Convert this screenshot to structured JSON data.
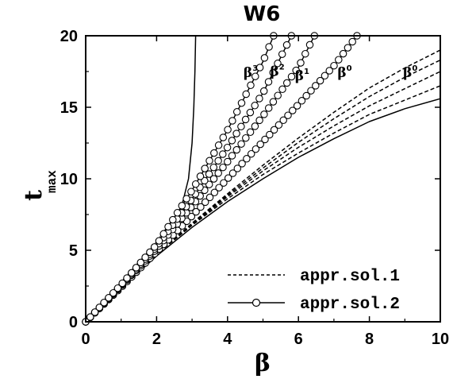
{
  "chart_data": {
    "type": "line",
    "title": "W6",
    "xlabel": "β",
    "ylabel_main": "t",
    "ylabel_sub": "max",
    "xlim": [
      0,
      10
    ],
    "ylim": [
      0,
      20
    ],
    "xticks": [
      0,
      2,
      4,
      6,
      8,
      10
    ],
    "yticks": [
      0,
      5,
      10,
      15,
      20
    ],
    "grid": false,
    "legend_position": "bottom-right",
    "legend": [
      {
        "label": "appr.sol.1",
        "style": "dashed"
      },
      {
        "label": "appr.sol.2",
        "style": "solid-circle"
      }
    ],
    "annotations": [
      {
        "base": "β",
        "sup": "3",
        "x": 4.45,
        "y": 17.1
      },
      {
        "base": "β",
        "sup": "2",
        "x": 5.2,
        "y": 17.2
      },
      {
        "base": "β",
        "sup": "1",
        "x": 5.9,
        "y": 16.9
      },
      {
        "base": "β",
        "sup": "0",
        "x": 7.1,
        "y": 17.1
      },
      {
        "base": "β",
        "sup": "0",
        "x": 8.95,
        "y": 17.1
      }
    ],
    "series": [
      {
        "style": "solid",
        "x": [
          0,
          0.5,
          1,
          1.5,
          2,
          2.4,
          2.7,
          2.9,
          3.0,
          3.05,
          3.08,
          3.1
        ],
        "y": [
          0,
          1.2,
          2.4,
          3.6,
          5.0,
          6.4,
          8.0,
          10.0,
          12.5,
          15.0,
          17.5,
          20.0
        ]
      },
      {
        "style": "solid",
        "x": [
          0,
          1,
          2,
          3,
          4,
          5,
          6,
          7,
          8,
          9,
          10
        ],
        "y": [
          0,
          2.35,
          4.6,
          6.6,
          8.4,
          10.0,
          11.5,
          12.8,
          14.0,
          14.9,
          15.6
        ]
      },
      {
        "style": "dashed",
        "x": [
          0,
          1,
          2,
          3,
          4,
          5,
          6,
          7,
          8,
          9,
          10
        ],
        "y": [
          0,
          2.4,
          4.7,
          6.75,
          8.6,
          10.3,
          11.8,
          13.2,
          14.5,
          15.5,
          16.5
        ]
      },
      {
        "style": "dashed",
        "x": [
          0,
          1,
          2,
          3,
          4,
          5,
          6,
          7,
          8,
          9,
          10
        ],
        "y": [
          0,
          2.4,
          4.7,
          6.8,
          8.75,
          10.55,
          12.2,
          13.7,
          15.1,
          16.3,
          17.5
        ]
      },
      {
        "style": "dashed",
        "x": [
          0,
          1,
          2,
          3,
          4,
          5,
          6,
          7,
          8,
          9,
          10
        ],
        "y": [
          0,
          2.4,
          4.7,
          6.85,
          8.85,
          10.75,
          12.55,
          14.2,
          15.75,
          17.1,
          18.3
        ]
      },
      {
        "style": "dashed",
        "x": [
          0,
          1,
          2,
          3,
          4,
          5,
          6,
          7,
          8,
          9,
          10
        ],
        "y": [
          0,
          2.4,
          4.7,
          6.9,
          8.95,
          10.95,
          12.85,
          14.65,
          16.35,
          17.75,
          19.0
        ]
      },
      {
        "style": "circle",
        "x": [
          0,
          1,
          2,
          3,
          4,
          5,
          6,
          7,
          7.65
        ],
        "y": [
          0,
          2.4,
          4.9,
          7.4,
          10.0,
          12.6,
          15.2,
          17.9,
          20.0
        ]
      },
      {
        "style": "circle",
        "x": [
          0,
          1,
          2,
          3,
          4,
          5,
          6,
          6.45
        ],
        "y": [
          0,
          2.5,
          5.1,
          8.1,
          11.2,
          14.4,
          17.8,
          20.0
        ]
      },
      {
        "style": "circle",
        "x": [
          0,
          1,
          2,
          3,
          4,
          5,
          5.8
        ],
        "y": [
          0,
          2.55,
          5.25,
          8.6,
          12.2,
          16.0,
          20.0
        ]
      },
      {
        "style": "circle",
        "x": [
          0,
          1,
          2,
          3,
          4,
          5,
          5.3
        ],
        "y": [
          0,
          2.6,
          5.4,
          9.2,
          13.4,
          18.2,
          20.0
        ]
      }
    ]
  }
}
